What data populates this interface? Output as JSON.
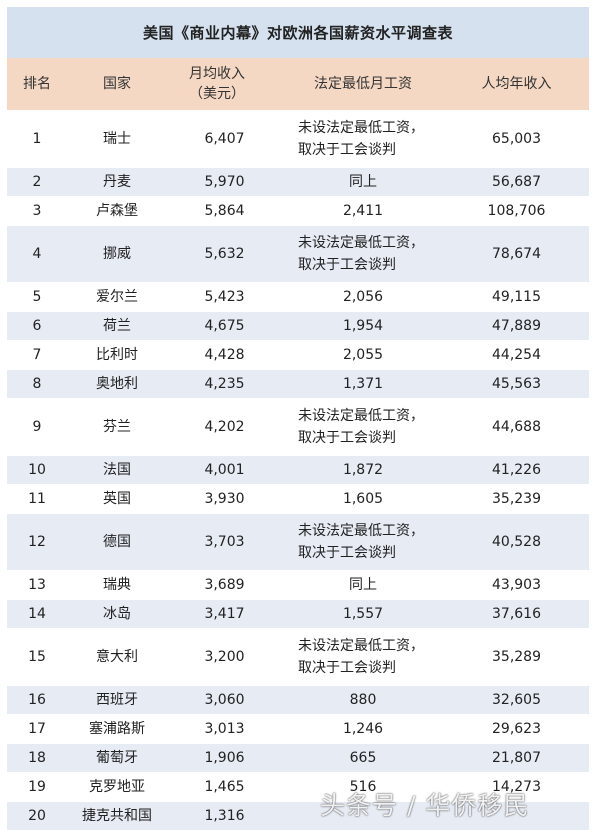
{
  "title": "美国《商业内幕》对欧洲各国薪资水平调查表",
  "headers": {
    "rank": "排名",
    "country": "国家",
    "monthly": "月均收入（美元）",
    "minwage": "法定最低月工资",
    "annual": "人均年收入"
  },
  "rows": [
    {
      "rank": "1",
      "country": "瑞士",
      "monthly": "6,407",
      "minwage": "未设法定最低工资，取决于工会谈判",
      "annual": "65,003"
    },
    {
      "rank": "2",
      "country": "丹麦",
      "monthly": "5,970",
      "minwage": "同上",
      "annual": "56,687"
    },
    {
      "rank": "3",
      "country": "卢森堡",
      "monthly": "5,864",
      "minwage": "2,411",
      "annual": "108,706"
    },
    {
      "rank": "4",
      "country": "挪威",
      "monthly": "5,632",
      "minwage": "未设法定最低工资，取决于工会谈判",
      "annual": "78,674"
    },
    {
      "rank": "5",
      "country": "爱尔兰",
      "monthly": "5,423",
      "minwage": "2,056",
      "annual": "49,115"
    },
    {
      "rank": "6",
      "country": "荷兰",
      "monthly": "4,675",
      "minwage": "1,954",
      "annual": "47,889"
    },
    {
      "rank": "7",
      "country": "比利时",
      "monthly": "4,428",
      "minwage": "2,055",
      "annual": "44,254"
    },
    {
      "rank": "8",
      "country": "奥地利",
      "monthly": "4,235",
      "minwage": "1,371",
      "annual": "45,563"
    },
    {
      "rank": "9",
      "country": "芬兰",
      "monthly": "4,202",
      "minwage": "未设法定最低工资，取决于工会谈判",
      "annual": "44,688"
    },
    {
      "rank": "10",
      "country": "法国",
      "monthly": "4,001",
      "minwage": "1,872",
      "annual": "41,226"
    },
    {
      "rank": "11",
      "country": "英国",
      "monthly": "3,930",
      "minwage": "1,605",
      "annual": "35,239"
    },
    {
      "rank": "12",
      "country": "德国",
      "monthly": "3,703",
      "minwage": "未设法定最低工资，取决于工会谈判",
      "annual": "40,528"
    },
    {
      "rank": "13",
      "country": "瑞典",
      "monthly": "3,689",
      "minwage": "同上",
      "annual": "43,903"
    },
    {
      "rank": "14",
      "country": "冰岛",
      "monthly": "3,417",
      "minwage": "1,557",
      "annual": "37,616"
    },
    {
      "rank": "15",
      "country": "意大利",
      "monthly": "3,200",
      "minwage": "未设法定最低工资，取决于工会谈判",
      "annual": "35,289"
    },
    {
      "rank": "16",
      "country": "西班牙",
      "monthly": "3,060",
      "minwage": "880",
      "annual": "32,605"
    },
    {
      "rank": "17",
      "country": "塞浦路斯",
      "monthly": "3,013",
      "minwage": "1,246",
      "annual": "29,623"
    },
    {
      "rank": "18",
      "country": "葡萄牙",
      "monthly": "1,906",
      "minwage": "665",
      "annual": "21,807"
    },
    {
      "rank": "19",
      "country": "克罗地亚",
      "monthly": "1,465",
      "minwage": "516",
      "annual": "14,273"
    },
    {
      "rank": "20",
      "country": "捷克共和国",
      "monthly": "1,316",
      "minwage": "",
      "annual": ""
    }
  ],
  "watermark": "头条号 / 华侨移民"
}
